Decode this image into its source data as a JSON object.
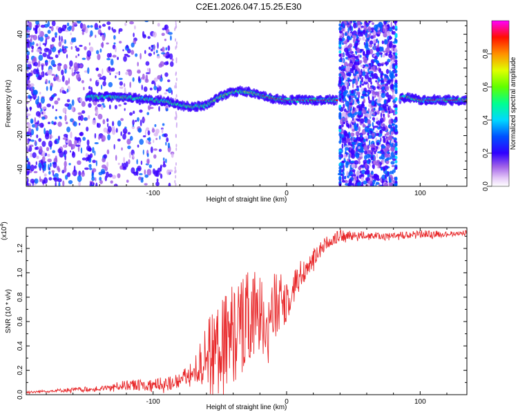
{
  "title": "C2E1.2026.047.15.25.E30",
  "chart_data": [
    {
      "type": "heatmap",
      "xlabel": "Height of straight line (km)",
      "ylabel": "Frequency (Hz)",
      "xlim": [
        -195,
        135
      ],
      "ylim": [
        -50,
        48
      ],
      "xticks": [
        -100,
        0,
        100
      ],
      "xtick_labels": [
        "-100",
        "0",
        "100"
      ],
      "yticks": [
        -40,
        -20,
        0,
        20,
        40
      ],
      "ytick_labels": [
        "-40",
        "-20",
        "0",
        "20",
        "40"
      ],
      "colorbar": {
        "label": "Normalized spectral amplitude",
        "range": [
          0.0,
          1.0
        ],
        "ticks": [
          0.0,
          0.2,
          0.4,
          0.6,
          0.8
        ],
        "tick_labels": [
          "0.0",
          "0.2",
          "0.4",
          "0.6",
          "0.8"
        ],
        "colormap": [
          "#ffffff",
          "#d9b3f5",
          "#8a2be2",
          "#0000ff",
          "#00c8ff",
          "#00ff80",
          "#80ff00",
          "#ffff00",
          "#ff8000",
          "#ff0000",
          "#ff00ff"
        ]
      },
      "ridge": {
        "x": [
          -150,
          -130,
          -110,
          -90,
          -80,
          -70,
          -60,
          -50,
          -40,
          -30,
          -20,
          -10,
          0,
          10,
          20,
          30,
          38
        ],
        "freq": [
          3,
          3,
          2,
          0,
          -2,
          -3,
          -2,
          3,
          6,
          6,
          4,
          2,
          1,
          1,
          1,
          1,
          1
        ]
      },
      "ridge_right": {
        "x": [
          85,
          90,
          95,
          100,
          110,
          120,
          135
        ],
        "freq": [
          2,
          3,
          2,
          1,
          1,
          1,
          1
        ]
      },
      "broadband_bursts": [
        {
          "x_start": 40,
          "x_end": 82,
          "label": ""
        }
      ]
    },
    {
      "type": "line",
      "ylabel": "SNR (10 * v/v)",
      "y_multiplier": "(x10^4)",
      "y_multiplier_base": "(x10",
      "y_multiplier_exp": "4",
      "y_multiplier_close": ")",
      "xlabel": "Height of straight line (km)",
      "xlim": [
        -195,
        135
      ],
      "ylim": [
        0,
        1.37
      ],
      "xticks": [
        -100,
        0,
        100
      ],
      "xtick_labels": [
        "-100",
        "0",
        "100"
      ],
      "yticks": [
        0.0,
        0.2,
        0.4,
        0.6,
        0.8,
        1.0,
        1.2
      ],
      "ytick_labels": [
        "0.0",
        "0.2",
        "0.4",
        "0.6",
        "0.8",
        "1.0",
        "1.2"
      ],
      "series": [
        {
          "name": "SNR",
          "color": "#e8282a",
          "x": [
            -195,
            -180,
            -160,
            -140,
            -120,
            -100,
            -90,
            -80,
            -75,
            -70,
            -65,
            -60,
            -55,
            -50,
            -45,
            -40,
            -35,
            -30,
            -25,
            -20,
            -15,
            -10,
            -5,
            0,
            5,
            10,
            15,
            20,
            25,
            30,
            35,
            40,
            50,
            60,
            70,
            80,
            90,
            100,
            110,
            120,
            135
          ],
          "values": [
            0.02,
            0.03,
            0.04,
            0.05,
            0.08,
            0.08,
            0.09,
            0.12,
            0.15,
            0.17,
            0.25,
            0.35,
            0.38,
            0.42,
            0.46,
            0.52,
            0.55,
            0.58,
            0.62,
            0.64,
            0.68,
            0.7,
            0.74,
            0.79,
            0.88,
            0.98,
            1.05,
            1.12,
            1.2,
            1.25,
            1.28,
            1.3,
            1.31,
            1.31,
            1.3,
            1.31,
            1.31,
            1.32,
            1.32,
            1.32,
            1.33
          ],
          "spread": [
            0.01,
            0.01,
            0.02,
            0.02,
            0.04,
            0.05,
            0.06,
            0.06,
            0.08,
            0.1,
            0.18,
            0.28,
            0.3,
            0.34,
            0.38,
            0.42,
            0.42,
            0.42,
            0.4,
            0.38,
            0.35,
            0.3,
            0.25,
            0.2,
            0.15,
            0.12,
            0.1,
            0.08,
            0.06,
            0.05,
            0.05,
            0.05,
            0.04,
            0.03,
            0.03,
            0.03,
            0.03,
            0.03,
            0.03,
            0.02,
            0.02
          ]
        }
      ]
    }
  ]
}
